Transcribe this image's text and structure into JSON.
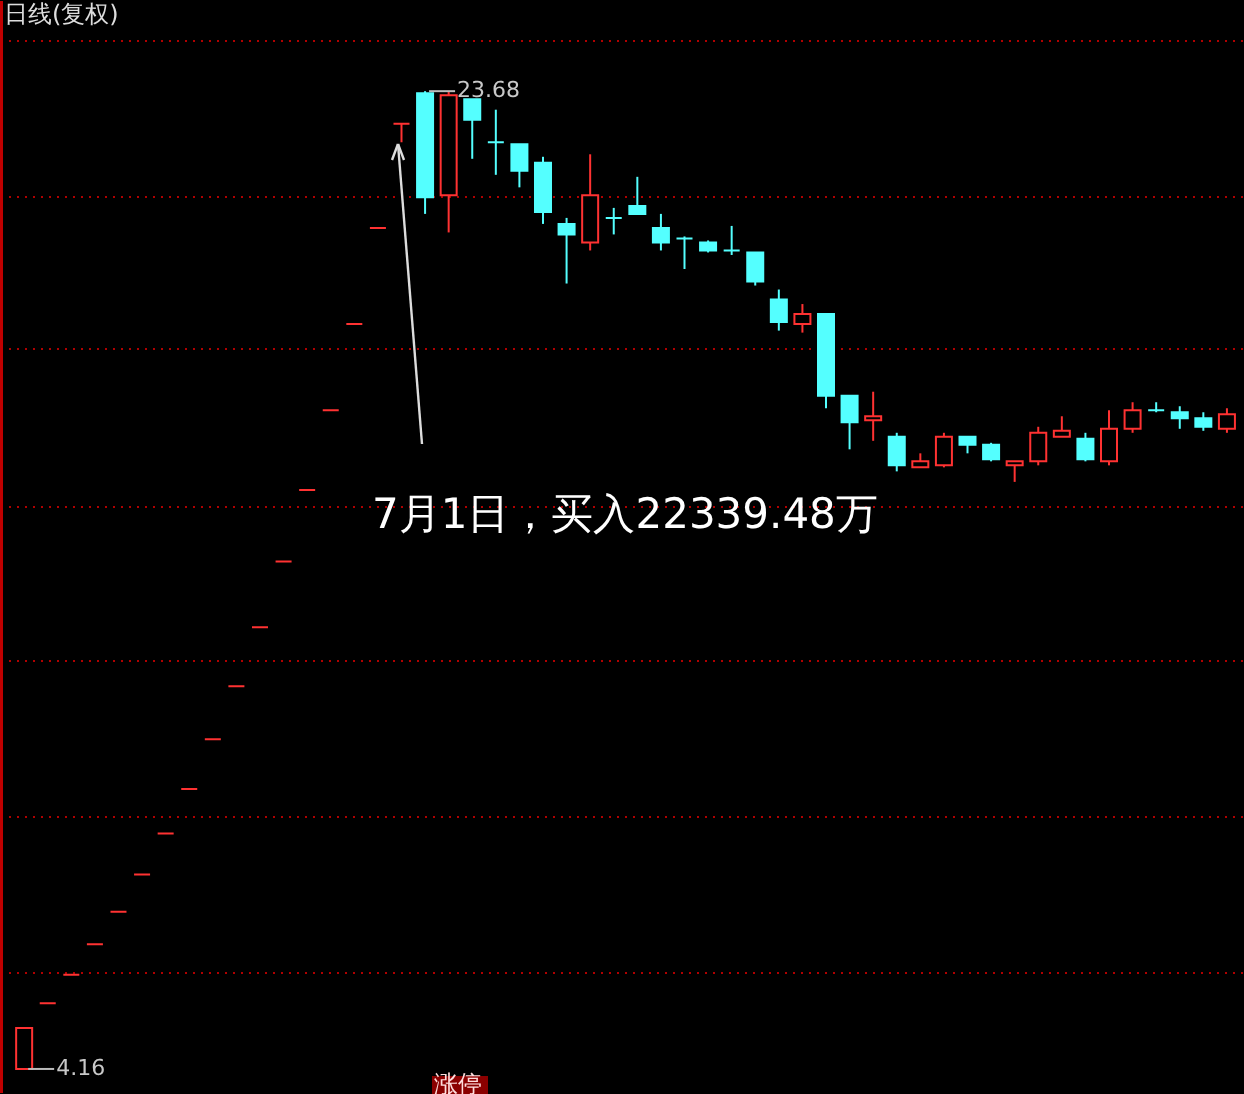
{
  "chart_data": {
    "type": "candlestick",
    "title": "日线(复权)",
    "categories": [
      null,
      null,
      null,
      null,
      null,
      null,
      null,
      null,
      null,
      null,
      null,
      null,
      null,
      null,
      null,
      null,
      null,
      null,
      null,
      null,
      null,
      null,
      null,
      null,
      null,
      null,
      null,
      null,
      null,
      null,
      null,
      null,
      null,
      null,
      null,
      null,
      null,
      null,
      null,
      null,
      null,
      null,
      null,
      null,
      null,
      null,
      null,
      null,
      null,
      null,
      null,
      null
    ],
    "ohlc": [
      [
        4.16,
        4.98,
        4.16,
        4.98
      ],
      [
        5.47,
        5.47,
        5.47,
        5.47
      ],
      [
        6.04,
        6.04,
        6.04,
        6.04
      ],
      [
        6.65,
        6.65,
        6.65,
        6.65
      ],
      [
        7.3,
        7.3,
        7.3,
        7.3
      ],
      [
        8.04,
        8.04,
        8.04,
        8.04
      ],
      [
        8.86,
        8.86,
        8.86,
        8.86
      ],
      [
        9.75,
        9.75,
        9.75,
        9.75
      ],
      [
        10.74,
        10.74,
        10.74,
        10.74
      ],
      [
        11.8,
        11.8,
        11.8,
        11.8
      ],
      [
        12.98,
        12.98,
        12.98,
        12.98
      ],
      [
        14.29,
        14.29,
        14.29,
        14.29
      ],
      [
        15.72,
        15.72,
        15.72,
        15.72
      ],
      [
        17.31,
        17.31,
        17.31,
        17.31
      ],
      [
        19.03,
        19.03,
        19.03,
        19.03
      ],
      [
        20.95,
        20.95,
        20.95,
        20.95
      ],
      [
        23.03,
        23.03,
        22.66,
        23.03
      ],
      [
        23.64,
        23.68,
        21.23,
        21.56
      ],
      [
        21.6,
        23.68,
        20.86,
        23.6
      ],
      [
        23.52,
        23.52,
        22.33,
        23.11
      ],
      [
        22.66,
        23.31,
        22.01,
        22.66
      ],
      [
        22.62,
        22.62,
        21.76,
        22.09
      ],
      [
        22.25,
        22.37,
        21.03,
        21.27
      ],
      [
        21.03,
        21.15,
        19.84,
        20.82
      ],
      [
        20.66,
        22.42,
        20.5,
        21.6
      ],
      [
        21.15,
        21.35,
        20.82,
        21.15
      ],
      [
        21.39,
        21.97,
        21.23,
        21.23
      ],
      [
        20.95,
        21.23,
        20.5,
        20.66
      ],
      [
        20.74,
        20.78,
        20.13,
        20.74
      ],
      [
        20.66,
        20.7,
        20.46,
        20.5
      ],
      [
        20.5,
        20.99,
        20.41,
        20.5
      ],
      [
        20.46,
        20.46,
        19.8,
        19.88
      ],
      [
        19.52,
        19.72,
        18.9,
        19.07
      ],
      [
        19.03,
        19.43,
        18.86,
        19.23
      ],
      [
        19.23,
        19.23,
        17.35,
        17.6
      ],
      [
        17.6,
        17.6,
        16.53,
        17.07
      ],
      [
        17.11,
        17.68,
        16.7,
        17.19
      ],
      [
        16.78,
        16.86,
        16.09,
        16.21
      ],
      [
        16.17,
        16.45,
        16.17,
        16.29
      ],
      [
        16.21,
        16.86,
        16.17,
        16.78
      ],
      [
        16.78,
        16.78,
        16.45,
        16.62
      ],
      [
        16.62,
        16.66,
        16.29,
        16.33
      ],
      [
        16.21,
        16.29,
        15.88,
        16.29
      ],
      [
        16.29,
        16.98,
        16.21,
        16.86
      ],
      [
        16.78,
        17.19,
        16.78,
        16.9
      ],
      [
        16.74,
        16.86,
        16.29,
        16.33
      ],
      [
        16.29,
        17.31,
        16.21,
        16.94
      ],
      [
        16.94,
        17.47,
        16.86,
        17.31
      ],
      [
        17.31,
        17.47,
        17.27,
        17.31
      ],
      [
        17.27,
        17.39,
        16.94,
        17.15
      ],
      [
        17.15,
        17.27,
        16.9,
        16.98
      ],
      [
        16.94,
        17.35,
        16.86,
        17.23
      ]
    ],
    "colors": [
      "#ff3232",
      "#ff3232",
      "#ff3232",
      "#ff3232",
      "#ff3232",
      "#ff3232",
      "#ff3232",
      "#ff3232",
      "#ff3232",
      "#ff3232",
      "#ff3232",
      "#ff3232",
      "#ff3232",
      "#ff3232",
      "#ff3232",
      "#ff3232",
      "#ff3232",
      "#54ffff",
      "#ff3232",
      "#54ffff",
      "#54ffff",
      "#54ffff",
      "#54ffff",
      "#54ffff",
      "#ff3232",
      "#54ffff",
      "#54ffff",
      "#54ffff",
      "#54ffff",
      "#54ffff",
      "#54ffff",
      "#54ffff",
      "#54ffff",
      "#ff3232",
      "#54ffff",
      "#54ffff",
      "#ff3232",
      "#54ffff",
      "#ff3232",
      "#ff3232",
      "#54ffff",
      "#54ffff",
      "#ff3232",
      "#ff3232",
      "#ff3232",
      "#54ffff",
      "#ff3232",
      "#ff3232",
      "#54ffff",
      "#54ffff",
      "#54ffff",
      "#ff3232"
    ],
    "ylim": [
      3.7,
      25.5
    ],
    "yticks": [
      {
        "value": 6.08,
        "label": null
      },
      {
        "value": 9.22,
        "label": null
      },
      {
        "value": 12.33,
        "label": null
      },
      {
        "value": 15.39,
        "label": null
      },
      {
        "value": 18.54,
        "label": null
      },
      {
        "value": 21.6,
        "label": null
      },
      {
        "value": 24.7,
        "label": null
      }
    ],
    "grid": "y",
    "tick_labels": false,
    "annotations": [
      "23.68",
      "4.16",
      "7月1日，买入22339.48万",
      "涨停"
    ]
  }
}
